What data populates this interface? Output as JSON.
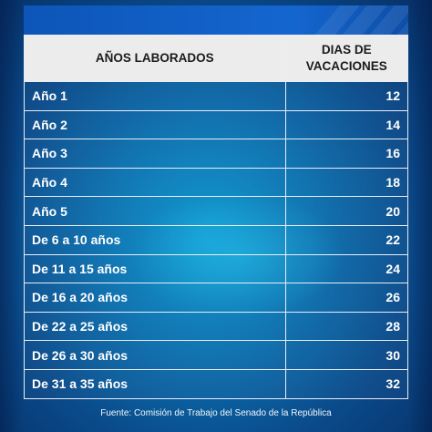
{
  "table": {
    "headers": {
      "years": "AÑOS LABORADOS",
      "days_line1": "DIAS DE",
      "days_line2": "VACACIONES"
    },
    "rows": [
      {
        "years": "Año 1",
        "days": "12"
      },
      {
        "years": "Año 2",
        "days": "14"
      },
      {
        "years": "Año 3",
        "days": "16"
      },
      {
        "years": "Año 4",
        "days": "18"
      },
      {
        "years": "Año 5",
        "days": "20"
      },
      {
        "years": "De 6 a 10 años",
        "days": "22"
      },
      {
        "years": "De 11 a 15 años",
        "days": "24"
      },
      {
        "years": "De 16 a 20 años",
        "days": "26"
      },
      {
        "years": "De 22 a 25 años",
        "days": "28"
      },
      {
        "years": "De 26 a 30 años",
        "days": "30"
      },
      {
        "years": "De 31 a 35 años",
        "days": "32"
      }
    ]
  },
  "footer": {
    "source": "Fuente: Comisión de Trabajo del Senado de la República"
  },
  "colors": {
    "background_center": "#0a97d0",
    "background_edge": "#062f66",
    "top_bar": "#1466cf",
    "header_bg": "#ececec",
    "text_white": "#ffffff"
  }
}
